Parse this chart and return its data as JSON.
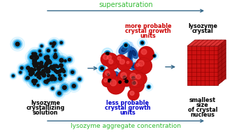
{
  "bg_color": "#ffffff",
  "top_arrow_color": "#336688",
  "bottom_arrow_color": "#336688",
  "top_label": "supersaturation",
  "bottom_label": "lysozyme aggregate concentration",
  "top_label_color": "#33bb33",
  "bottom_label_color": "#33bb33",
  "panel1_caption_line1": "lysozyme",
  "panel1_caption_line2": "crystallizing",
  "panel1_caption_line3": "solution",
  "panel1_caption_color": "#000000",
  "panel2_top_caption_line1": "more probable",
  "panel2_top_caption_line2": "crystal growth",
  "panel2_top_caption_line3": "units",
  "panel2_top_caption_color": "#cc0000",
  "panel2_bot_caption_line1": "less probable",
  "panel2_bot_caption_line2": "crystal growth",
  "panel2_bot_caption_line3": "units",
  "panel2_bot_caption_color": "#0000cc",
  "panel3_top_caption_line1": "lysozyme",
  "panel3_top_caption_line2": "crystal",
  "panel3_top_caption_color": "#000000",
  "panel3_bot_caption_line1": "smallest",
  "panel3_bot_caption_line2": "size",
  "panel3_bot_caption_line3": "of crystal",
  "panel3_bot_caption_line4": "nucleus",
  "panel3_bot_caption_color": "#000000",
  "inter_arrow_color": "#336688",
  "black_dot_color": "#111111",
  "red_dot_color": "#cc1111",
  "crystal_color": "#cc1111",
  "crystal_grid_color": "#880000",
  "crystal_top_color": "#dd3333",
  "crystal_right_color": "#aa1111"
}
